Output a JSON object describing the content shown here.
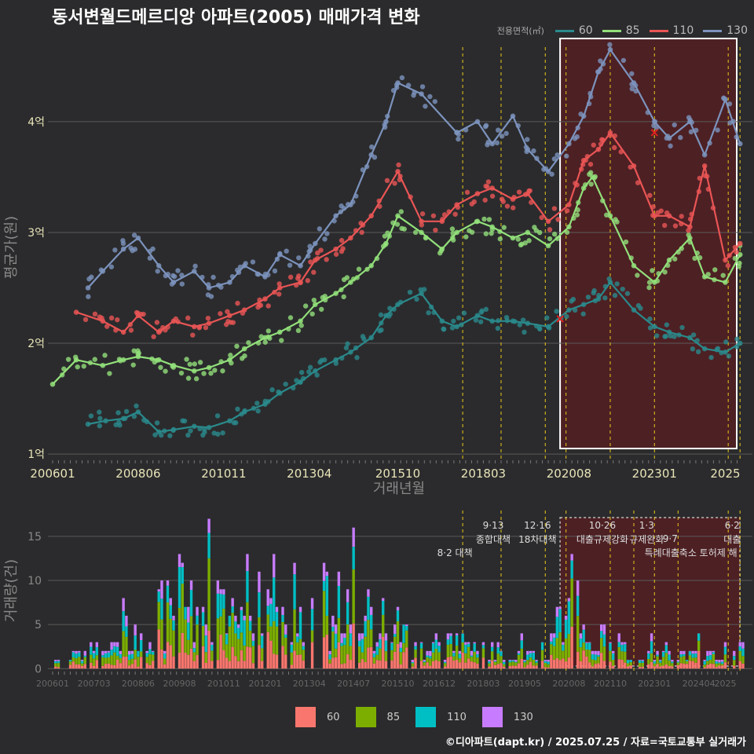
{
  "title": "동서변월드메르디앙 아파트(2005) 매매가격 변화",
  "footer": "©디아파트(dapt.kr) / 2025.07.25 / 자료=국토교통부 실거래가",
  "legend_title": "전용면적(㎡)",
  "colors": {
    "background": "#2b2b2d",
    "grid": "#5a5a5a",
    "s60": "#2a8a8c",
    "s85": "#92e07a",
    "s110": "#ea5555",
    "s130": "#7c93bd",
    "v60": "#f8766d",
    "v85": "#7cae00",
    "v110": "#00bfc4",
    "v130": "#c77cff",
    "policy_line": "#e6c619",
    "highlight_fill": "#5a1e22",
    "highlight_border": "#ffffff",
    "axis_text": "#e8e4b8"
  },
  "chart_data": [
    {
      "type": "line",
      "ylabel": "평균가(원)",
      "xlabel": "거래년월",
      "y_ticks": [
        {
          "v": 1,
          "label": "1억"
        },
        {
          "v": 2,
          "label": "2억"
        },
        {
          "v": 3,
          "label": "3억"
        },
        {
          "v": 4,
          "label": "4억"
        }
      ],
      "x_ticks": [
        "200601",
        "200806",
        "201011",
        "201304",
        "201510",
        "201803",
        "202008",
        "202301",
        "2025"
      ],
      "ylim": [
        0.93,
        4.8
      ],
      "xlim": [
        "2006-01",
        "2025-07"
      ],
      "grid": true,
      "legend_position": "top-right",
      "series": [
        {
          "name": "60",
          "points": [
            [
              "2007-01",
              1.27
            ],
            [
              "2007-07",
              1.3
            ],
            [
              "2008-01",
              1.32
            ],
            [
              "2008-06",
              1.38
            ],
            [
              "2009-01",
              1.2
            ],
            [
              "2009-06",
              1.22
            ],
            [
              "2010-01",
              1.25
            ],
            [
              "2010-06",
              1.24
            ],
            [
              "2011-01",
              1.3
            ],
            [
              "2011-06",
              1.38
            ],
            [
              "2012-01",
              1.45
            ],
            [
              "2012-06",
              1.55
            ],
            [
              "2013-01",
              1.65
            ],
            [
              "2013-06",
              1.75
            ],
            [
              "2014-01",
              1.85
            ],
            [
              "2014-06",
              1.92
            ],
            [
              "2015-01",
              2.05
            ],
            [
              "2015-06",
              2.25
            ],
            [
              "2015-10",
              2.35
            ],
            [
              "2016-06",
              2.45
            ],
            [
              "2017-01",
              2.2
            ],
            [
              "2017-06",
              2.15
            ],
            [
              "2018-01",
              2.25
            ],
            [
              "2018-06",
              2.2
            ],
            [
              "2019-01",
              2.2
            ],
            [
              "2019-06",
              2.18
            ],
            [
              "2020-01",
              2.15
            ],
            [
              "2020-08",
              2.3
            ],
            [
              "2021-01",
              2.35
            ],
            [
              "2021-06",
              2.4
            ],
            [
              "2021-10",
              2.55
            ],
            [
              "2022-06",
              2.3
            ],
            [
              "2023-01",
              2.15
            ],
            [
              "2023-06",
              2.1
            ],
            [
              "2024-01",
              2.05
            ],
            [
              "2024-06",
              1.95
            ],
            [
              "2025-01",
              1.92
            ],
            [
              "2025-06",
              2.0
            ]
          ]
        },
        {
          "name": "85",
          "points": [
            [
              "2006-01",
              1.63
            ],
            [
              "2006-09",
              1.85
            ],
            [
              "2007-06",
              1.8
            ],
            [
              "2008-01",
              1.85
            ],
            [
              "2008-06",
              1.88
            ],
            [
              "2009-01",
              1.85
            ],
            [
              "2009-06",
              1.8
            ],
            [
              "2010-01",
              1.75
            ],
            [
              "2010-06",
              1.78
            ],
            [
              "2011-01",
              1.85
            ],
            [
              "2011-06",
              1.95
            ],
            [
              "2012-01",
              2.05
            ],
            [
              "2012-06",
              2.1
            ],
            [
              "2013-01",
              2.2
            ],
            [
              "2013-06",
              2.35
            ],
            [
              "2014-01",
              2.45
            ],
            [
              "2014-06",
              2.55
            ],
            [
              "2015-01",
              2.7
            ],
            [
              "2015-06",
              2.9
            ],
            [
              "2015-10",
              3.15
            ],
            [
              "2016-06",
              3.0
            ],
            [
              "2017-01",
              2.85
            ],
            [
              "2017-06",
              3.0
            ],
            [
              "2018-01",
              3.1
            ],
            [
              "2018-06",
              3.05
            ],
            [
              "2019-01",
              2.95
            ],
            [
              "2019-06",
              3.0
            ],
            [
              "2020-01",
              2.88
            ],
            [
              "2020-08",
              3.05
            ],
            [
              "2021-01",
              3.4
            ],
            [
              "2021-04",
              3.5
            ],
            [
              "2021-10",
              3.15
            ],
            [
              "2022-06",
              2.7
            ],
            [
              "2023-01",
              2.55
            ],
            [
              "2023-06",
              2.75
            ],
            [
              "2024-01",
              2.95
            ],
            [
              "2024-06",
              2.6
            ],
            [
              "2025-01",
              2.55
            ],
            [
              "2025-06",
              2.8
            ]
          ]
        },
        {
          "name": "110",
          "points": [
            [
              "2006-09",
              2.28
            ],
            [
              "2007-06",
              2.2
            ],
            [
              "2008-01",
              2.1
            ],
            [
              "2008-06",
              2.25
            ],
            [
              "2009-01",
              2.1
            ],
            [
              "2009-06",
              2.2
            ],
            [
              "2010-01",
              2.15
            ],
            [
              "2010-06",
              2.18
            ],
            [
              "2011-01",
              2.25
            ],
            [
              "2011-06",
              2.3
            ],
            [
              "2012-01",
              2.4
            ],
            [
              "2012-06",
              2.5
            ],
            [
              "2013-01",
              2.55
            ],
            [
              "2013-06",
              2.75
            ],
            [
              "2014-01",
              2.85
            ],
            [
              "2014-06",
              2.95
            ],
            [
              "2015-01",
              3.15
            ],
            [
              "2015-10",
              3.55
            ],
            [
              "2016-06",
              3.1
            ],
            [
              "2017-01",
              3.1
            ],
            [
              "2017-06",
              3.25
            ],
            [
              "2018-01",
              3.35
            ],
            [
              "2018-06",
              3.4
            ],
            [
              "2019-01",
              3.3
            ],
            [
              "2019-06",
              3.35
            ],
            [
              "2020-01",
              3.1
            ],
            [
              "2020-08",
              3.25
            ],
            [
              "2021-01",
              3.65
            ],
            [
              "2021-06",
              3.75
            ],
            [
              "2021-10",
              3.9
            ],
            [
              "2022-06",
              3.6
            ],
            [
              "2023-01",
              3.15
            ],
            [
              "2023-06",
              3.15
            ],
            [
              "2024-01",
              3.05
            ],
            [
              "2024-06",
              3.6
            ],
            [
              "2025-01",
              2.75
            ],
            [
              "2025-06",
              2.9
            ]
          ]
        },
        {
          "name": "130",
          "points": [
            [
              "2007-01",
              2.5
            ],
            [
              "2007-06",
              2.65
            ],
            [
              "2008-01",
              2.85
            ],
            [
              "2008-06",
              2.95
            ],
            [
              "2009-01",
              2.7
            ],
            [
              "2009-06",
              2.55
            ],
            [
              "2010-01",
              2.65
            ],
            [
              "2010-06",
              2.5
            ],
            [
              "2011-01",
              2.55
            ],
            [
              "2011-06",
              2.7
            ],
            [
              "2012-01",
              2.6
            ],
            [
              "2012-06",
              2.8
            ],
            [
              "2013-01",
              2.7
            ],
            [
              "2013-06",
              2.9
            ],
            [
              "2014-01",
              3.15
            ],
            [
              "2014-06",
              3.25
            ],
            [
              "2015-01",
              3.7
            ],
            [
              "2015-06",
              4.0
            ],
            [
              "2015-10",
              4.35
            ],
            [
              "2016-06",
              4.25
            ],
            [
              "2017-06",
              3.9
            ],
            [
              "2018-01",
              4.0
            ],
            [
              "2018-06",
              3.8
            ],
            [
              "2019-01",
              4.05
            ],
            [
              "2019-06",
              3.75
            ],
            [
              "2020-01",
              3.55
            ],
            [
              "2020-08",
              3.8
            ],
            [
              "2021-01",
              4.05
            ],
            [
              "2021-06",
              4.45
            ],
            [
              "2021-10",
              4.65
            ],
            [
              "2022-06",
              4.35
            ],
            [
              "2023-01",
              4.0
            ],
            [
              "2023-06",
              3.85
            ],
            [
              "2024-01",
              4.0
            ],
            [
              "2024-06",
              3.7
            ],
            [
              "2025-01",
              4.2
            ],
            [
              "2025-06",
              3.8
            ]
          ]
        }
      ],
      "markers": [
        {
          "x": "2020-05",
          "y": 2.22,
          "symbol": "x"
        },
        {
          "x": "2023-01",
          "y": 3.9,
          "symbol": "x"
        }
      ],
      "policy_lines": [
        "2017-08",
        "2018-09",
        "2019-12",
        "2020-07",
        "2021-10",
        "2023-01",
        "2025-02",
        "2025-06"
      ],
      "highlight": {
        "from": "2020-05",
        "to": "2025-07",
        "ymin": 1.05,
        "ymax": 4.75
      }
    },
    {
      "type": "bar",
      "stacked": true,
      "ylabel": "거래량(건)",
      "y_ticks": [
        0,
        5,
        10,
        15
      ],
      "ylim": [
        -0.6,
        17.4
      ],
      "x_ticks": [
        "200601",
        "200703",
        "200806",
        "200908",
        "201011",
        "201201",
        "201304",
        "201407",
        "201510",
        "201612",
        "201803",
        "201905",
        "202008",
        "202110",
        "202301",
        "202404",
        "2025"
      ],
      "legend_position": "bottom",
      "series_names": [
        "60",
        "85",
        "110",
        "130"
      ],
      "volume_profile": [
        [
          "2006-01",
          1
        ],
        [
          "2006-06",
          1
        ],
        [
          "2007-01",
          3
        ],
        [
          "2007-06",
          2
        ],
        [
          "2008-01",
          4
        ],
        [
          "2008-06",
          5
        ],
        [
          "2009-01",
          6
        ],
        [
          "2009-06",
          9
        ],
        [
          "2010-01",
          8
        ],
        [
          "2010-06",
          10
        ],
        [
          "2011-01",
          7
        ],
        [
          "2011-06",
          9
        ],
        [
          "2012-01",
          8
        ],
        [
          "2012-06",
          9
        ],
        [
          "2013-01",
          8
        ],
        [
          "2013-06",
          9
        ],
        [
          "2014-01",
          7
        ],
        [
          "2014-06",
          6
        ],
        [
          "2015-01",
          6
        ],
        [
          "2015-06",
          5
        ],
        [
          "2016-01",
          4
        ],
        [
          "2016-06",
          3
        ],
        [
          "2017-01",
          3
        ],
        [
          "2017-06",
          3
        ],
        [
          "2018-01",
          2
        ],
        [
          "2018-06",
          2
        ],
        [
          "2019-01",
          2
        ],
        [
          "2019-06",
          2
        ],
        [
          "2020-01",
          2
        ],
        [
          "2020-06",
          5
        ],
        [
          "2020-09",
          10
        ],
        [
          "2021-01",
          6
        ],
        [
          "2021-06",
          4
        ],
        [
          "2022-01",
          2
        ],
        [
          "2022-06",
          1
        ],
        [
          "2023-01",
          2
        ],
        [
          "2023-06",
          2
        ],
        [
          "2024-01",
          2
        ],
        [
          "2024-06",
          2
        ],
        [
          "2025-01",
          2
        ],
        [
          "2025-06",
          2
        ]
      ],
      "policy_lines": [
        "2017-08",
        "2018-09",
        "2019-12",
        "2020-07",
        "2021-10",
        "2022-06",
        "2023-01",
        "2023-09",
        "2025-02",
        "2025-06"
      ],
      "annotations": [
        {
          "x": "2017-08",
          "line1": "",
          "line2": "8·2 대책"
        },
        {
          "x": "2018-09",
          "line1": "9·13",
          "line2": "종합대책"
        },
        {
          "x": "2019-12",
          "line1": "12·16",
          "line2": "18차대책"
        },
        {
          "x": "2021-10",
          "line1": "10·26",
          "line2": "대출규제강화"
        },
        {
          "x": "2023-01",
          "line1": "1·3",
          "line2": "규제완화"
        },
        {
          "x": "2023-09",
          "line1": "",
          "line2": "9·7"
        },
        {
          "x": "2024-04",
          "line1": "",
          "line2": "특례대출축소 토허제 해"
        },
        {
          "x": "2025-06",
          "line1": "6·2",
          "line2": "대출"
        }
      ],
      "highlight": {
        "from": "2020-05",
        "to": "2025-07"
      }
    }
  ]
}
